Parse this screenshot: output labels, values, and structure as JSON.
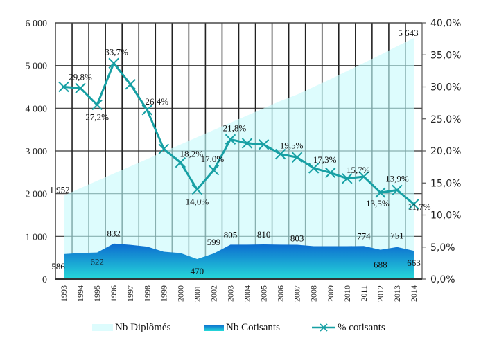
{
  "chart_data": {
    "type": "area+line",
    "title": "",
    "categories": [
      "1993",
      "1994",
      "1995",
      "1996",
      "1997",
      "1998",
      "1999",
      "2000",
      "2001",
      "2002",
      "2003",
      "2004",
      "2005",
      "2006",
      "2007",
      "2008",
      "2009",
      "2010",
      "2011",
      "2012",
      "2013",
      "2014"
    ],
    "series": [
      {
        "name": "Nb Diplômés",
        "type": "area",
        "axis": "left",
        "color": "#ddfcfd",
        "values": [
          1952,
          2130,
          2300,
          2470,
          2640,
          2810,
          2980,
          3150,
          3320,
          3490,
          3660,
          3830,
          4000,
          4170,
          4320,
          4500,
          4680,
          4870,
          5060,
          5250,
          5450,
          5643
        ],
        "labels": {
          "0": "1 952",
          "21": "5 643"
        }
      },
      {
        "name": "Nb Cotisants",
        "type": "area",
        "axis": "left",
        "color_top": "#0c6ad0",
        "color_bottom": "#26d8d8",
        "values": [
          586,
          610,
          622,
          832,
          800,
          760,
          640,
          610,
          470,
          599,
          805,
          805,
          810,
          805,
          803,
          770,
          770,
          770,
          774,
          688,
          751,
          663
        ],
        "labels": {
          "0": "586",
          "2": "622",
          "3": "832",
          "8": "470",
          "9": "599",
          "10": "805",
          "12": "810",
          "14": "803",
          "18": "774",
          "19": "688",
          "20": "751",
          "21": "663"
        }
      },
      {
        "name": "% cotisants",
        "type": "line",
        "axis": "right",
        "color": "#17a0a4",
        "marker": "x",
        "values": [
          30.0,
          29.8,
          27.2,
          33.7,
          30.4,
          26.4,
          20.3,
          18.2,
          14.0,
          17.0,
          21.8,
          21.2,
          21.0,
          19.5,
          19.0,
          17.3,
          16.6,
          15.7,
          16.0,
          13.5,
          13.9,
          11.7
        ],
        "labels": {
          "1": "29,8%",
          "2": "27,2%",
          "3": "33,7%",
          "5": "26,4%",
          "7": "18,2%",
          "8": "14,0%",
          "9": "17,0%",
          "10": "21,8%",
          "13": "19,5%",
          "15": "17,3%",
          "17": "15,7%",
          "19": "13,5%",
          "20": "13,9%",
          "21": "11,7%"
        }
      }
    ],
    "y_left": {
      "min": 0,
      "max": 6000,
      "ticks": [
        0,
        1000,
        2000,
        3000,
        4000,
        5000,
        6000
      ],
      "tick_labels": [
        "0",
        "1 000",
        "2 000",
        "3 000",
        "4 000",
        "5 000",
        "6 000"
      ]
    },
    "y_right": {
      "min": 0,
      "max": 40,
      "ticks": [
        0,
        5,
        10,
        15,
        20,
        25,
        30,
        35,
        40
      ],
      "tick_labels": [
        "0,0%",
        "5,0%",
        "10,0%",
        "15,0%",
        "20,0%",
        "25,0%",
        "30,0%",
        "35,0%",
        "40,0%"
      ]
    },
    "grid": true,
    "legend_position": "bottom",
    "legend": [
      "Nb Diplômés",
      "Nb Cotisants",
      "% cotisants"
    ]
  }
}
